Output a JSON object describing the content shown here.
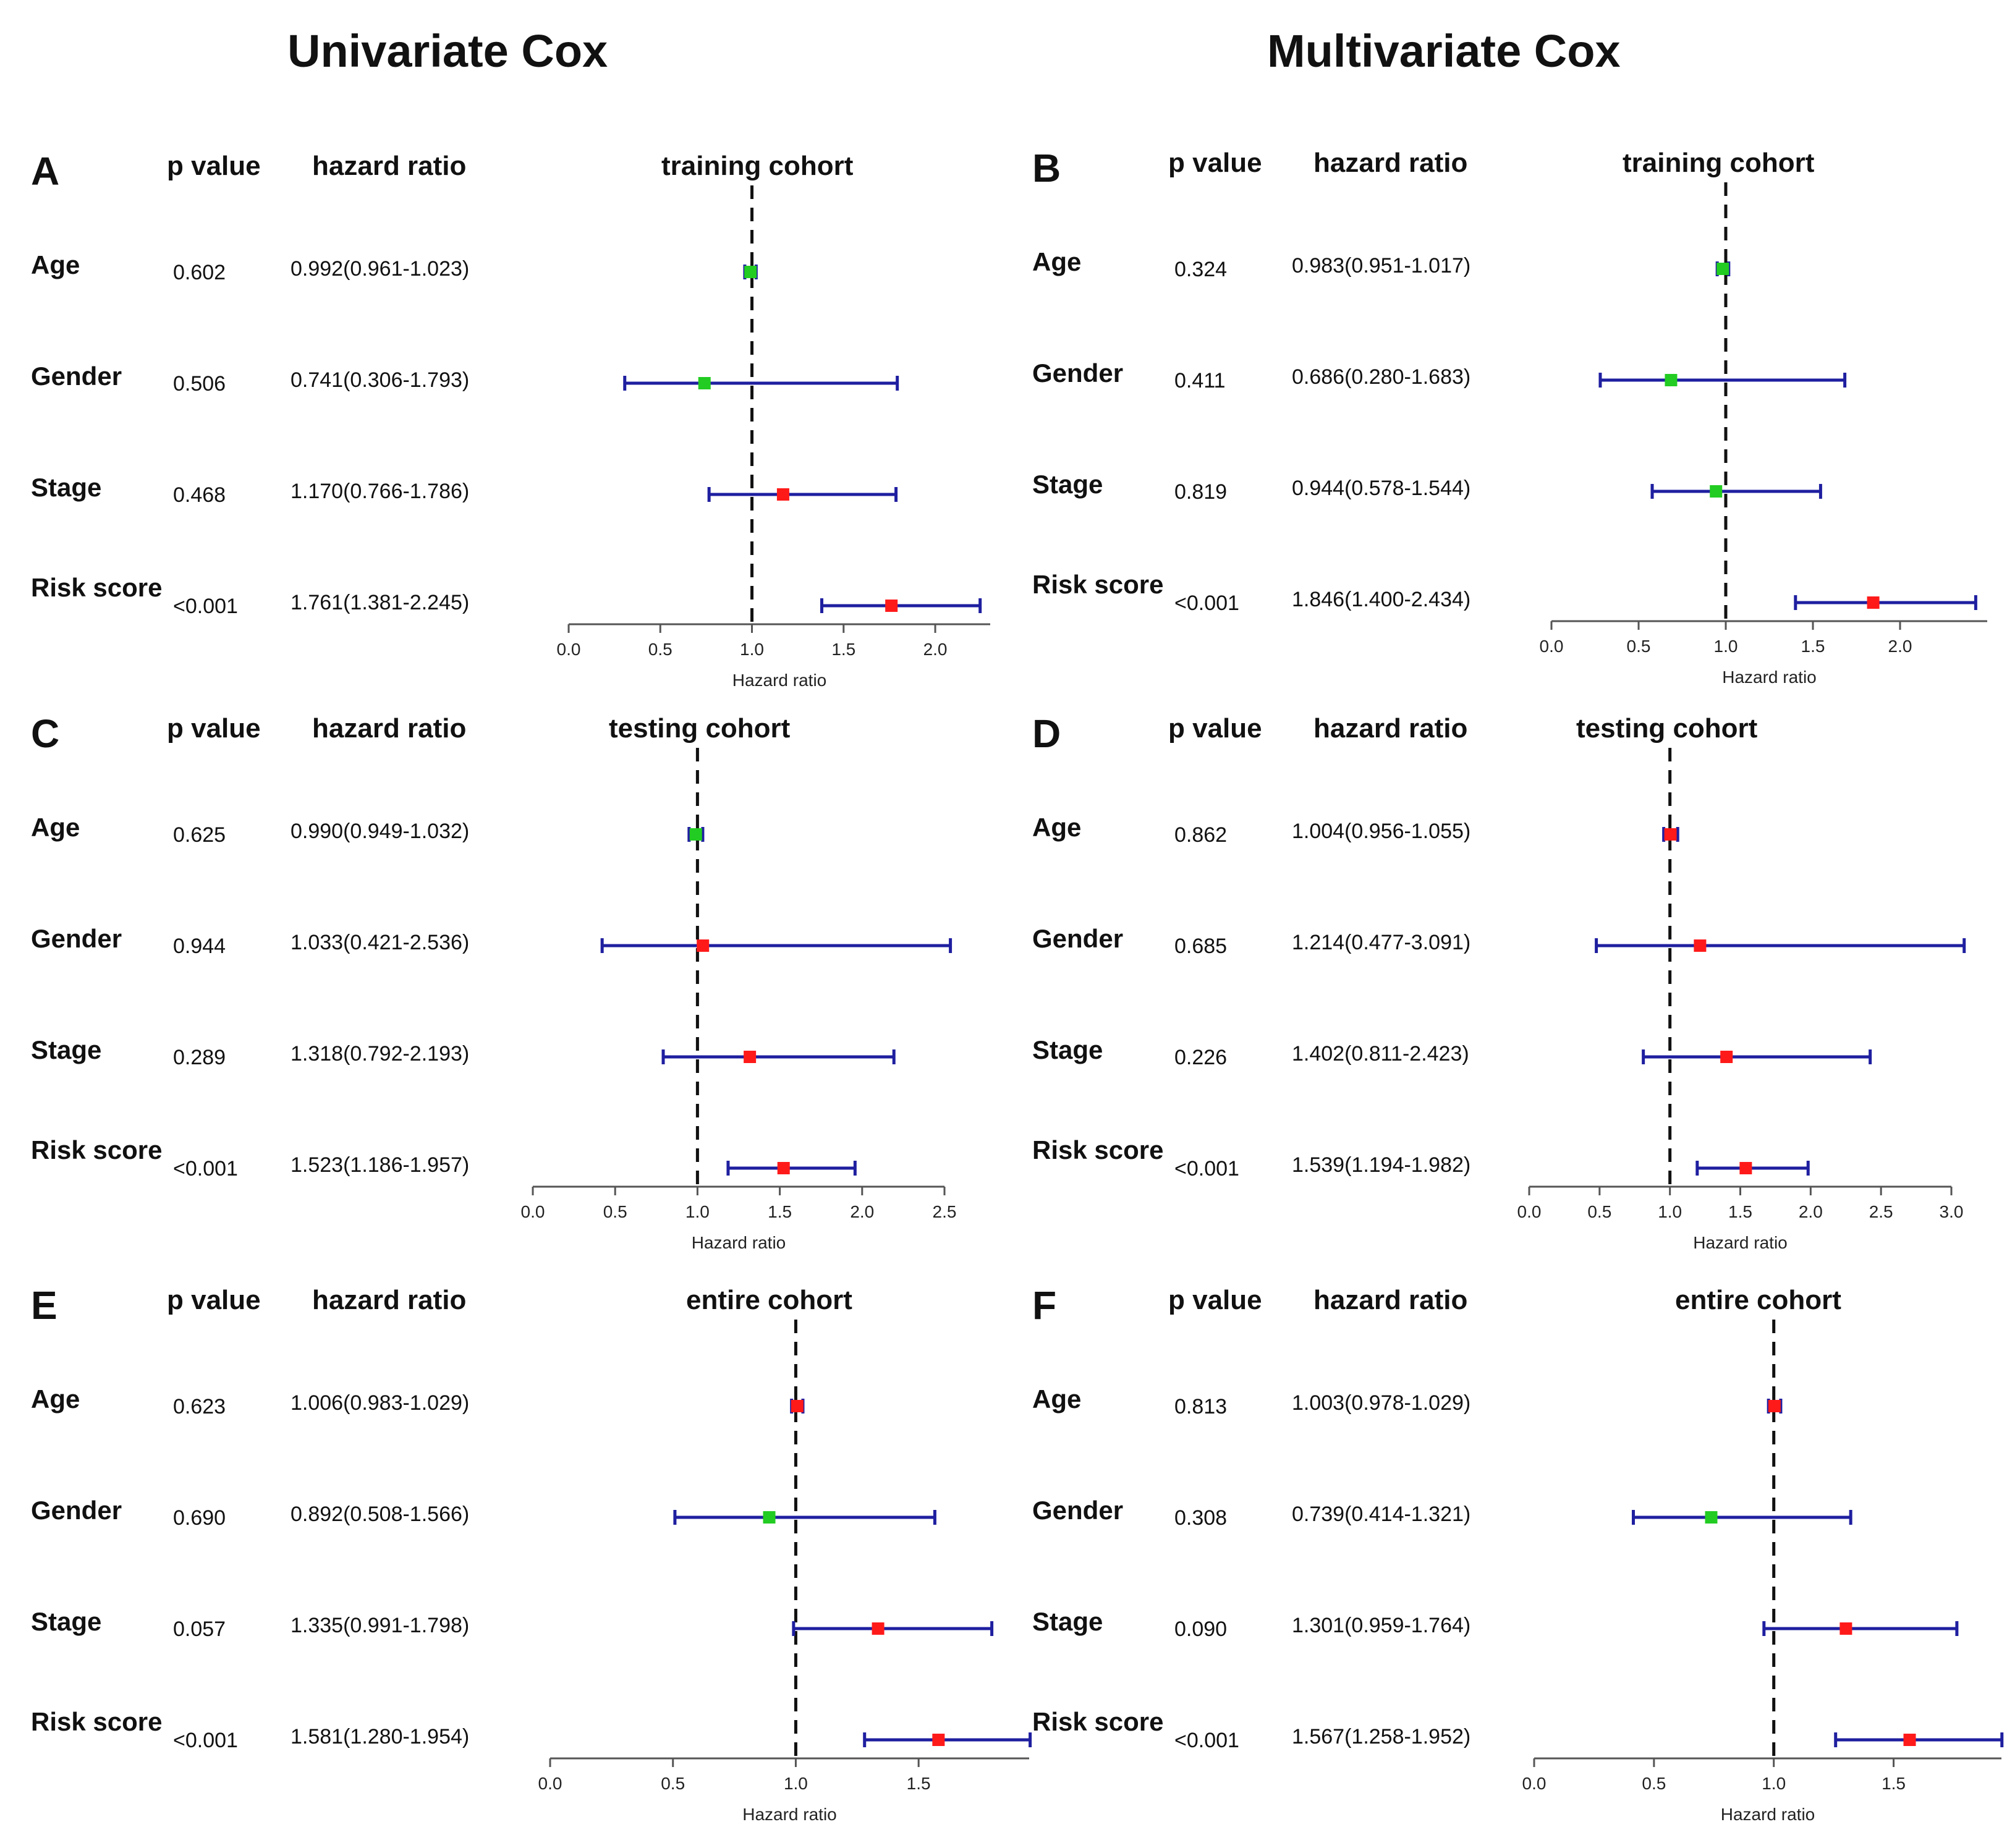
{
  "column_titles": [
    "Univariate Cox",
    "Multivariate Cox"
  ],
  "headers": {
    "p": "p value",
    "hr": "hazard ratio"
  },
  "row_labels": [
    "Age",
    "Gender",
    "Stage",
    "Risk score"
  ],
  "colors": {
    "ci": "#1f1fa0",
    "hr_gt1": "#ff1a1a",
    "hr_lt1": "#22cc22",
    "axis": "#555555"
  },
  "chart_data": [
    {
      "id": "A",
      "label": "A",
      "type": "forest",
      "title": "training cohort",
      "model": "Univariate Cox",
      "xlabel": "Hazard ratio",
      "xlim": [
        0,
        2.3
      ],
      "ticks": [
        "0.0",
        "0.5",
        "1.0",
        "1.5",
        "2.0"
      ],
      "rows": [
        {
          "p": "0.602",
          "hr_text": "0.992(0.961-1.023)",
          "hr": 0.992,
          "lo": 0.961,
          "hi": 1.023
        },
        {
          "p": "0.506",
          "hr_text": "0.741(0.306-1.793)",
          "hr": 0.741,
          "lo": 0.306,
          "hi": 1.793
        },
        {
          "p": "0.468",
          "hr_text": "1.170(0.766-1.786)",
          "hr": 1.17,
          "lo": 0.766,
          "hi": 1.786
        },
        {
          "p": "<0.001",
          "hr_text": "1.761(1.381-2.245)",
          "hr": 1.761,
          "lo": 1.381,
          "hi": 2.245
        }
      ]
    },
    {
      "id": "B",
      "label": "B",
      "type": "forest",
      "title": "training cohort",
      "model": "Multivariate Cox",
      "xlabel": "Hazard ratio",
      "xlim": [
        0,
        2.5
      ],
      "ticks": [
        "0.0",
        "0.5",
        "1.0",
        "1.5",
        "2.0"
      ],
      "rows": [
        {
          "p": "0.324",
          "hr_text": "0.983(0.951-1.017)",
          "hr": 0.983,
          "lo": 0.951,
          "hi": 1.017
        },
        {
          "p": "0.411",
          "hr_text": "0.686(0.280-1.683)",
          "hr": 0.686,
          "lo": 0.28,
          "hi": 1.683
        },
        {
          "p": "0.819",
          "hr_text": "0.944(0.578-1.544)",
          "hr": 0.944,
          "lo": 0.578,
          "hi": 1.544
        },
        {
          "p": "<0.001",
          "hr_text": "1.846(1.400-2.434)",
          "hr": 1.846,
          "lo": 1.4,
          "hi": 2.434
        }
      ]
    },
    {
      "id": "C",
      "label": "C",
      "type": "forest",
      "title": "testing cohort",
      "model": "Univariate Cox",
      "xlabel": "Hazard ratio",
      "xlim": [
        0,
        2.5
      ],
      "ticks": [
        "0.0",
        "0.5",
        "1.0",
        "1.5",
        "2.0",
        "2.5"
      ],
      "rows": [
        {
          "p": "0.625",
          "hr_text": "0.990(0.949-1.032)",
          "hr": 0.99,
          "lo": 0.949,
          "hi": 1.032
        },
        {
          "p": "0.944",
          "hr_text": "1.033(0.421-2.536)",
          "hr": 1.033,
          "lo": 0.421,
          "hi": 2.536
        },
        {
          "p": "0.289",
          "hr_text": "1.318(0.792-2.193)",
          "hr": 1.318,
          "lo": 0.792,
          "hi": 2.193
        },
        {
          "p": "<0.001",
          "hr_text": "1.523(1.186-1.957)",
          "hr": 1.523,
          "lo": 1.186,
          "hi": 1.957
        }
      ]
    },
    {
      "id": "D",
      "label": "D",
      "type": "forest",
      "title": "testing cohort",
      "model": "Multivariate Cox",
      "xlabel": "Hazard ratio",
      "xlim": [
        0,
        3.0
      ],
      "ticks": [
        "0.0",
        "0.5",
        "1.0",
        "1.5",
        "2.0",
        "2.5",
        "3.0"
      ],
      "rows": [
        {
          "p": "0.862",
          "hr_text": "1.004(0.956-1.055)",
          "hr": 1.004,
          "lo": 0.956,
          "hi": 1.055
        },
        {
          "p": "0.685",
          "hr_text": "1.214(0.477-3.091)",
          "hr": 1.214,
          "lo": 0.477,
          "hi": 3.091
        },
        {
          "p": "0.226",
          "hr_text": "1.402(0.811-2.423)",
          "hr": 1.402,
          "lo": 0.811,
          "hi": 2.423
        },
        {
          "p": "<0.001",
          "hr_text": "1.539(1.194-1.982)",
          "hr": 1.539,
          "lo": 1.194,
          "hi": 1.982
        }
      ]
    },
    {
      "id": "E",
      "label": "E",
      "type": "forest",
      "title": "entire cohort",
      "model": "Univariate Cox",
      "xlabel": "Hazard ratio",
      "xlim": [
        0,
        1.95
      ],
      "ticks": [
        "0.0",
        "0.5",
        "1.0",
        "1.5"
      ],
      "rows": [
        {
          "p": "0.623",
          "hr_text": "1.006(0.983-1.029)",
          "hr": 1.006,
          "lo": 0.983,
          "hi": 1.029
        },
        {
          "p": "0.690",
          "hr_text": "0.892(0.508-1.566)",
          "hr": 0.892,
          "lo": 0.508,
          "hi": 1.566
        },
        {
          "p": "0.057",
          "hr_text": "1.335(0.991-1.798)",
          "hr": 1.335,
          "lo": 0.991,
          "hi": 1.798
        },
        {
          "p": "<0.001",
          "hr_text": "1.581(1.280-1.954)",
          "hr": 1.581,
          "lo": 1.28,
          "hi": 1.954
        }
      ]
    },
    {
      "id": "F",
      "label": "F",
      "type": "forest",
      "title": "entire cohort",
      "model": "Multivariate Cox",
      "xlabel": "Hazard ratio",
      "xlim": [
        0,
        1.95
      ],
      "ticks": [
        "0.0",
        "0.5",
        "1.0",
        "1.5"
      ],
      "rows": [
        {
          "p": "0.813",
          "hr_text": "1.003(0.978-1.029)",
          "hr": 1.003,
          "lo": 0.978,
          "hi": 1.029
        },
        {
          "p": "0.308",
          "hr_text": "0.739(0.414-1.321)",
          "hr": 0.739,
          "lo": 0.414,
          "hi": 1.321
        },
        {
          "p": "0.090",
          "hr_text": "1.301(0.959-1.764)",
          "hr": 1.301,
          "lo": 0.959,
          "hi": 1.764
        },
        {
          "p": "<0.001",
          "hr_text": "1.567(1.258-1.952)",
          "hr": 1.567,
          "lo": 1.258,
          "hi": 1.952
        }
      ]
    }
  ]
}
